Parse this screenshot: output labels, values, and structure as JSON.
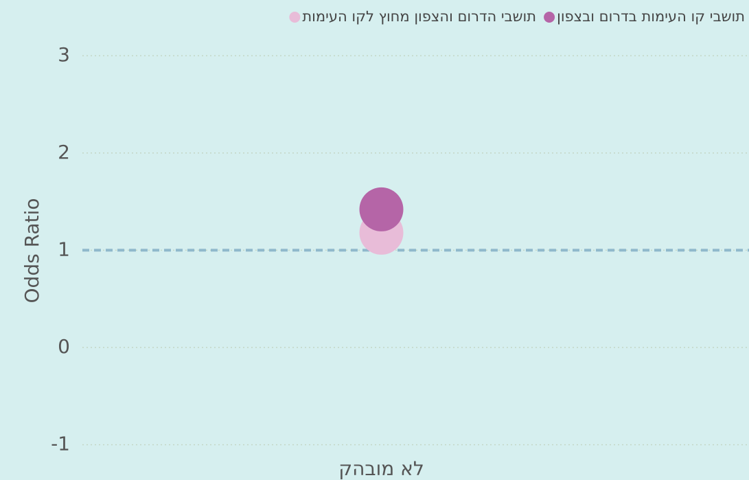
{
  "chart_data": {
    "type": "scatter",
    "y_label": "Odds Ratio",
    "categories": [
      "לא מובהק"
    ],
    "series": [
      {
        "name": "תושבי קו העימות בדרום ובצפון",
        "color": "#b565a7",
        "values": [
          1.42
        ]
      },
      {
        "name": "תושבי הדרום והצפון מחוץ לקו העימות",
        "color": "#e8bcd8",
        "values": [
          1.18
        ]
      }
    ],
    "ylim": [
      -1.13,
      3.1
    ],
    "yticks": [
      -1,
      0,
      1,
      2,
      3
    ],
    "reference_line": 1,
    "reference_color": "#8fb8cc",
    "grid": true,
    "legend": "top"
  }
}
